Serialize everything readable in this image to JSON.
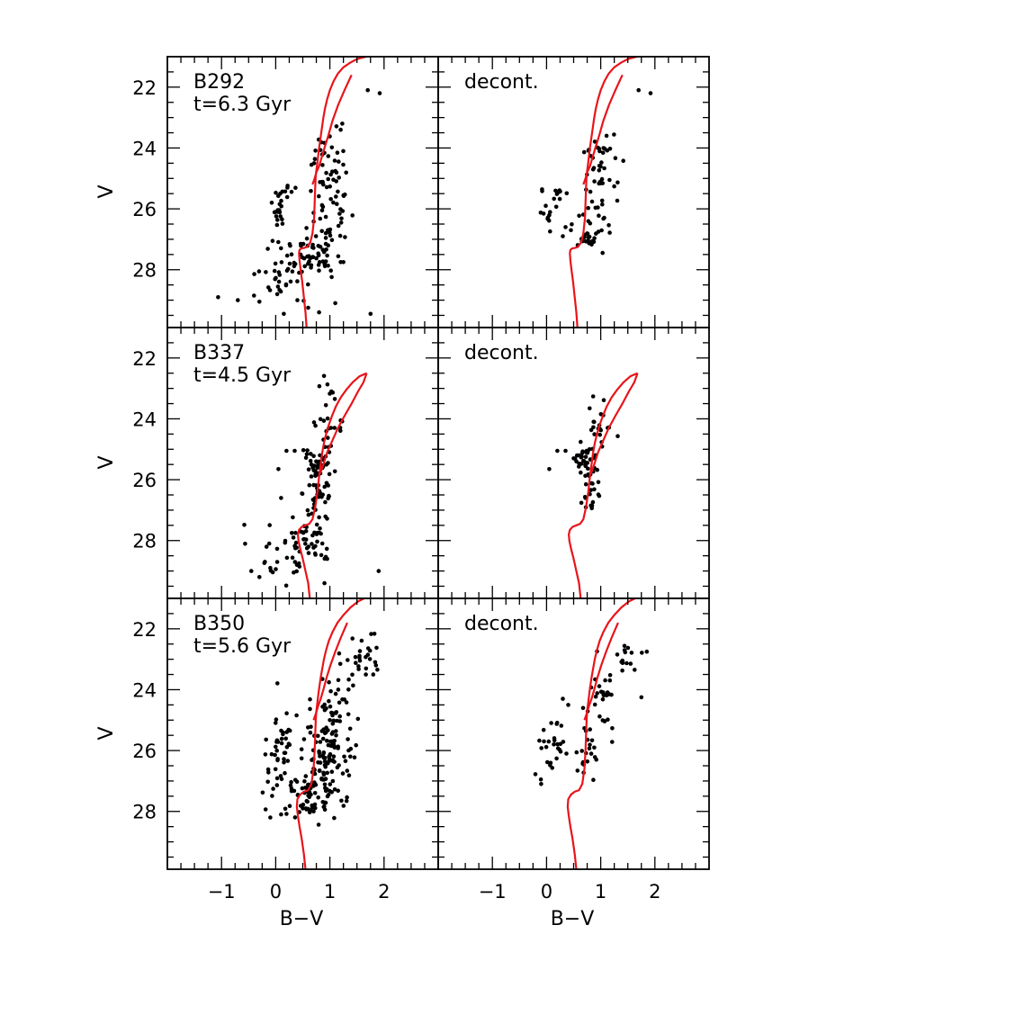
{
  "colors": {
    "isochrone": "#e8141b",
    "points": "#000000",
    "axes": "#000000"
  },
  "axes": {
    "xlabel": "B−V",
    "ylabel": "V",
    "xlim": [
      -2.0,
      3.0
    ],
    "ylim": [
      29.9,
      21.0
    ],
    "xticks": [
      "−1",
      "0",
      "1",
      "2"
    ],
    "xtick_values": [
      -1,
      0,
      1,
      2
    ],
    "yticks": [
      "22",
      "24",
      "26",
      "28"
    ],
    "ytick_values": [
      22,
      24,
      26,
      28
    ]
  },
  "chart_data": [
    {
      "type": "scatter",
      "cluster": "B292",
      "age_label": "t=6.3 Gyr",
      "label": "B292",
      "row": 0,
      "col": 0,
      "isochrone": {
        "x": [
          0.57,
          0.55,
          0.52,
          0.49,
          0.46,
          0.44,
          0.43,
          0.44,
          0.47,
          0.53,
          0.58,
          0.64,
          0.68,
          0.71,
          0.72,
          0.73,
          0.74,
          0.76,
          0.78,
          0.8,
          0.82,
          0.84,
          0.86,
          0.88,
          0.91,
          0.95,
          1.0,
          1.07,
          1.15,
          1.25,
          1.37,
          1.5,
          1.62,
          1.72
        ],
        "y": [
          29.9,
          29.4,
          28.9,
          28.4,
          28.0,
          27.7,
          27.45,
          27.35,
          27.3,
          27.28,
          27.25,
          27.1,
          26.8,
          26.3,
          25.8,
          25.3,
          24.9,
          24.6,
          24.3,
          24.0,
          23.75,
          23.5,
          23.25,
          23.0,
          22.7,
          22.4,
          22.1,
          21.8,
          21.55,
          21.35,
          21.2,
          21.08,
          21.02,
          20.98
        ]
      },
      "branch": {
        "x": [
          0.68,
          0.72,
          0.75,
          0.8,
          0.85,
          0.9,
          0.97,
          1.05,
          1.15,
          1.27,
          1.4
        ],
        "y": [
          25.2,
          25.0,
          24.8,
          24.6,
          24.3,
          24.0,
          23.6,
          23.1,
          22.6,
          22.1,
          21.6
        ]
      },
      "clusters": [
        {
          "cx": 0.05,
          "cy": 26.0,
          "sx": 0.06,
          "sy": 0.38,
          "n": 18
        },
        {
          "cx": 0.25,
          "cy": 25.45,
          "sx": 0.1,
          "sy": 0.08,
          "n": 8
        },
        {
          "cx": 1.0,
          "cy": 24.6,
          "sx": 0.17,
          "sy": 0.65,
          "n": 45
        },
        {
          "cx": 0.95,
          "cy": 26.5,
          "sx": 0.22,
          "sy": 0.5,
          "n": 35
        },
        {
          "cx": 0.55,
          "cy": 27.65,
          "sx": 0.32,
          "sy": 0.4,
          "n": 55
        },
        {
          "cx": 0.05,
          "cy": 28.5,
          "sx": 0.32,
          "sy": 0.35,
          "n": 22
        }
      ],
      "points": [
        [
          -0.7,
          29.0
        ],
        [
          -0.4,
          28.85
        ],
        [
          -0.3,
          29.05
        ],
        [
          1.1,
          29.1
        ],
        [
          1.2,
          27.75
        ],
        [
          1.25,
          27.75
        ],
        [
          1.7,
          22.1
        ],
        [
          1.92,
          22.2
        ],
        [
          1.23,
          23.2
        ],
        [
          1.2,
          23.4
        ],
        [
          0.6,
          29.25
        ],
        [
          0.8,
          29.4
        ],
        [
          0.15,
          29.45
        ],
        [
          1.75,
          29.45
        ],
        [
          0.4,
          29.0
        ]
      ]
    },
    {
      "type": "scatter",
      "label": "decont.",
      "row": 0,
      "col": 1,
      "isochrone": {
        "x": [
          0.57,
          0.55,
          0.52,
          0.49,
          0.46,
          0.44,
          0.43,
          0.44,
          0.47,
          0.53,
          0.58,
          0.64,
          0.68,
          0.71,
          0.72,
          0.73,
          0.74,
          0.76,
          0.78,
          0.8,
          0.82,
          0.84,
          0.86,
          0.88,
          0.91,
          0.95,
          1.0,
          1.07,
          1.15,
          1.25,
          1.37,
          1.5,
          1.62,
          1.72
        ],
        "y": [
          29.9,
          29.4,
          28.9,
          28.4,
          28.0,
          27.7,
          27.45,
          27.35,
          27.3,
          27.28,
          27.25,
          27.1,
          26.8,
          26.3,
          25.8,
          25.3,
          24.9,
          24.6,
          24.3,
          24.0,
          23.75,
          23.5,
          23.25,
          23.0,
          22.7,
          22.4,
          22.1,
          21.8,
          21.55,
          21.35,
          21.2,
          21.08,
          21.02,
          20.98
        ]
      },
      "branch": {
        "x": [
          0.68,
          0.72,
          0.75,
          0.8,
          0.85,
          0.9,
          0.97,
          1.05,
          1.15,
          1.27,
          1.4
        ],
        "y": [
          25.2,
          25.0,
          24.8,
          24.6,
          24.3,
          24.0,
          23.6,
          23.1,
          22.6,
          22.1,
          21.6
        ]
      },
      "clusters": [
        {
          "cx": 0.0,
          "cy": 26.05,
          "sx": 0.08,
          "sy": 0.3,
          "n": 14
        },
        {
          "cx": 0.25,
          "cy": 25.45,
          "sx": 0.1,
          "sy": 0.1,
          "n": 7
        },
        {
          "cx": 1.0,
          "cy": 24.6,
          "sx": 0.15,
          "sy": 0.65,
          "n": 38
        },
        {
          "cx": 0.9,
          "cy": 26.4,
          "sx": 0.15,
          "sy": 0.45,
          "n": 25
        },
        {
          "cx": 0.75,
          "cy": 27.0,
          "sx": 0.1,
          "sy": 0.15,
          "n": 14
        }
      ],
      "points": [
        [
          1.7,
          22.1
        ],
        [
          1.92,
          22.2
        ],
        [
          0.35,
          26.6
        ],
        [
          0.45,
          26.7
        ],
        [
          0.3,
          26.9
        ]
      ]
    },
    {
      "type": "scatter",
      "cluster": "B337",
      "age_label": "t=4.5 Gyr",
      "label": "B337",
      "row": 1,
      "col": 0,
      "isochrone": {
        "x": [
          0.63,
          0.6,
          0.55,
          0.5,
          0.45,
          0.42,
          0.41,
          0.43,
          0.48,
          0.55,
          0.62,
          0.68,
          0.73,
          0.77,
          0.8,
          0.83,
          0.86,
          0.89,
          0.93,
          0.98,
          1.04,
          1.11,
          1.2,
          1.3,
          1.42,
          1.55,
          1.68
        ],
        "y": [
          29.9,
          29.4,
          29.0,
          28.6,
          28.25,
          28.0,
          27.8,
          27.65,
          27.55,
          27.5,
          27.45,
          27.3,
          26.9,
          26.4,
          25.9,
          25.5,
          25.1,
          24.8,
          24.5,
          24.2,
          23.9,
          23.6,
          23.3,
          23.05,
          22.8,
          22.6,
          22.5
        ]
      },
      "branch": {
        "x": [
          0.82,
          0.88,
          0.95,
          1.05,
          1.15,
          1.27,
          1.4,
          1.52,
          1.62,
          1.68
        ],
        "y": [
          25.8,
          25.5,
          25.1,
          24.7,
          24.3,
          23.9,
          23.5,
          23.1,
          22.8,
          22.5
        ]
      },
      "clusters": [
        {
          "cx": 0.95,
          "cy": 24.3,
          "sx": 0.15,
          "sy": 0.65,
          "n": 30
        },
        {
          "cx": 0.75,
          "cy": 25.4,
          "sx": 0.12,
          "sy": 0.2,
          "n": 30
        },
        {
          "cx": 0.8,
          "cy": 26.5,
          "sx": 0.15,
          "sy": 0.6,
          "n": 40
        },
        {
          "cx": 0.55,
          "cy": 27.9,
          "sx": 0.25,
          "sy": 0.45,
          "n": 50
        },
        {
          "cx": 0.1,
          "cy": 28.5,
          "sx": 0.3,
          "sy": 0.4,
          "n": 15
        }
      ],
      "points": [
        [
          -0.45,
          29.0
        ],
        [
          -0.3,
          29.2
        ],
        [
          -0.1,
          28.9
        ],
        [
          1.9,
          29.0
        ],
        [
          0.9,
          29.4
        ],
        [
          0.2,
          25.05
        ],
        [
          0.35,
          25.05
        ],
        [
          0.05,
          25.65
        ],
        [
          0.1,
          26.6
        ],
        [
          1.2,
          24.05
        ],
        [
          -0.2,
          28.7
        ]
      ]
    },
    {
      "type": "scatter",
      "label": "decont.",
      "row": 1,
      "col": 1,
      "isochrone": {
        "x": [
          0.63,
          0.6,
          0.55,
          0.5,
          0.45,
          0.42,
          0.41,
          0.43,
          0.48,
          0.55,
          0.62,
          0.68,
          0.73,
          0.77,
          0.8,
          0.83,
          0.86,
          0.89,
          0.93,
          0.98,
          1.04,
          1.11,
          1.2,
          1.3,
          1.42,
          1.55,
          1.68
        ],
        "y": [
          29.9,
          29.4,
          29.0,
          28.6,
          28.25,
          28.0,
          27.8,
          27.65,
          27.55,
          27.5,
          27.45,
          27.3,
          26.9,
          26.4,
          25.9,
          25.5,
          25.1,
          24.8,
          24.5,
          24.2,
          23.9,
          23.6,
          23.3,
          23.05,
          22.8,
          22.6,
          22.5
        ]
      },
      "branch": {
        "x": [
          0.82,
          0.88,
          0.95,
          1.05,
          1.15,
          1.27,
          1.4,
          1.52,
          1.62,
          1.68
        ],
        "y": [
          25.8,
          25.5,
          25.1,
          24.7,
          24.3,
          23.9,
          23.5,
          23.1,
          22.8,
          22.5
        ]
      },
      "clusters": [
        {
          "cx": 1.0,
          "cy": 24.2,
          "sx": 0.13,
          "sy": 0.55,
          "n": 22
        },
        {
          "cx": 0.75,
          "cy": 25.35,
          "sx": 0.1,
          "sy": 0.2,
          "n": 28
        },
        {
          "cx": 0.8,
          "cy": 26.3,
          "sx": 0.12,
          "sy": 0.4,
          "n": 25
        }
      ],
      "points": [
        [
          0.2,
          25.05
        ],
        [
          0.35,
          25.05
        ],
        [
          0.05,
          25.65
        ],
        [
          0.5,
          25.3
        ],
        [
          0.55,
          25.4
        ],
        [
          0.6,
          25.2
        ]
      ]
    },
    {
      "type": "scatter",
      "cluster": "B350",
      "age_label": "t=5.6 Gyr",
      "label": "B350",
      "row": 2,
      "col": 0,
      "isochrone": {
        "x": [
          0.55,
          0.52,
          0.48,
          0.44,
          0.41,
          0.39,
          0.4,
          0.45,
          0.52,
          0.6,
          0.66,
          0.7,
          0.72,
          0.73,
          0.74,
          0.75,
          0.77,
          0.79,
          0.81,
          0.83,
          0.86,
          0.89,
          0.93,
          0.98,
          1.05,
          1.14,
          1.25,
          1.38,
          1.52,
          1.66,
          1.78
        ],
        "y": [
          29.9,
          29.4,
          28.9,
          28.5,
          28.15,
          27.85,
          27.6,
          27.45,
          27.35,
          27.3,
          27.1,
          26.6,
          26.0,
          25.5,
          25.0,
          24.7,
          24.4,
          24.1,
          23.85,
          23.6,
          23.3,
          23.0,
          22.7,
          22.4,
          22.1,
          21.8,
          21.55,
          21.3,
          21.1,
          20.98,
          20.9
        ]
      },
      "branch": {
        "x": [
          0.7,
          0.74,
          0.78,
          0.83,
          0.88,
          0.94,
          1.01,
          1.1,
          1.2,
          1.32
        ],
        "y": [
          25.0,
          24.8,
          24.55,
          24.3,
          24.0,
          23.6,
          23.2,
          22.75,
          22.3,
          21.8
        ]
      },
      "clusters": [
        {
          "cx": 0.1,
          "cy": 25.6,
          "sx": 0.12,
          "sy": 0.45,
          "n": 30
        },
        {
          "cx": -0.05,
          "cy": 26.8,
          "sx": 0.12,
          "sy": 0.4,
          "n": 10
        },
        {
          "cx": 1.05,
          "cy": 24.6,
          "sx": 0.2,
          "sy": 0.8,
          "n": 50
        },
        {
          "cx": 0.95,
          "cy": 26.2,
          "sx": 0.25,
          "sy": 0.6,
          "n": 80
        },
        {
          "cx": 0.6,
          "cy": 27.5,
          "sx": 0.3,
          "sy": 0.4,
          "n": 80
        },
        {
          "cx": 1.6,
          "cy": 22.9,
          "sx": 0.15,
          "sy": 0.4,
          "n": 25
        }
      ],
      "points": [
        [
          -0.1,
          28.2
        ],
        [
          0.1,
          28.1
        ],
        [
          1.85,
          23.2
        ],
        [
          1.8,
          23.5
        ],
        [
          0.5,
          27.9
        ],
        [
          0.7,
          28.0
        ]
      ]
    },
    {
      "type": "scatter",
      "label": "decont.",
      "row": 2,
      "col": 1,
      "isochrone": {
        "x": [
          0.55,
          0.52,
          0.48,
          0.44,
          0.41,
          0.39,
          0.4,
          0.45,
          0.52,
          0.6,
          0.66,
          0.7,
          0.72,
          0.73,
          0.74,
          0.75,
          0.77,
          0.79,
          0.81,
          0.83,
          0.86,
          0.89,
          0.93,
          0.98,
          1.05,
          1.14,
          1.25,
          1.38,
          1.52,
          1.66,
          1.78
        ],
        "y": [
          29.9,
          29.4,
          28.9,
          28.5,
          28.15,
          27.85,
          27.6,
          27.45,
          27.35,
          27.3,
          27.1,
          26.6,
          26.0,
          25.5,
          25.0,
          24.7,
          24.4,
          24.1,
          23.85,
          23.6,
          23.3,
          23.0,
          22.7,
          22.4,
          22.1,
          21.8,
          21.55,
          21.3,
          21.1,
          20.98,
          20.9
        ]
      },
      "branch": {
        "x": [
          0.7,
          0.74,
          0.78,
          0.83,
          0.88,
          0.94,
          1.01,
          1.1,
          1.2,
          1.32
        ],
        "y": [
          25.0,
          24.8,
          24.55,
          24.3,
          24.0,
          23.6,
          23.2,
          22.75,
          22.3,
          21.8
        ]
      },
      "clusters": [
        {
          "cx": 0.1,
          "cy": 25.7,
          "sx": 0.12,
          "sy": 0.4,
          "n": 22
        },
        {
          "cx": -0.05,
          "cy": 26.7,
          "sx": 0.08,
          "sy": 0.2,
          "n": 5
        },
        {
          "cx": 1.0,
          "cy": 24.3,
          "sx": 0.15,
          "sy": 0.7,
          "n": 30
        },
        {
          "cx": 0.78,
          "cy": 26.0,
          "sx": 0.1,
          "sy": 0.45,
          "n": 20
        },
        {
          "cx": 1.5,
          "cy": 22.8,
          "sx": 0.15,
          "sy": 0.3,
          "n": 14
        }
      ],
      "points": [
        [
          1.75,
          24.25
        ],
        [
          1.85,
          22.75
        ],
        [
          -0.1,
          27.1
        ],
        [
          0.3,
          24.3
        ],
        [
          0.4,
          24.5
        ]
      ]
    }
  ]
}
